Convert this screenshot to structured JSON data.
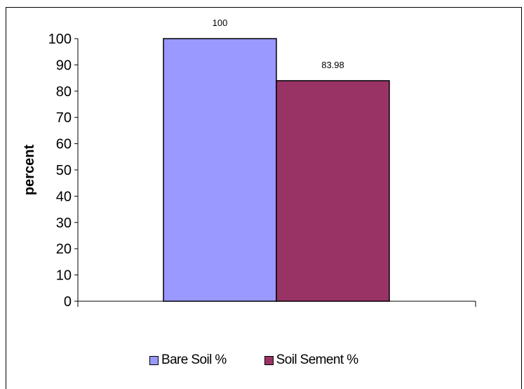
{
  "chart_data": {
    "type": "bar",
    "title": "",
    "xlabel": "",
    "ylabel": "percent",
    "ylim": [
      0,
      100
    ],
    "yticks": [
      0,
      10,
      20,
      30,
      40,
      50,
      60,
      70,
      80,
      90,
      100
    ],
    "grid": false,
    "legend_position": "bottom",
    "series": [
      {
        "name": "Bare Soil %",
        "values": [
          100
        ],
        "color": "#9999ff",
        "label": "100"
      },
      {
        "name": "Soil Sement %",
        "values": [
          83.98
        ],
        "color": "#993366",
        "label": "83.98"
      }
    ]
  }
}
